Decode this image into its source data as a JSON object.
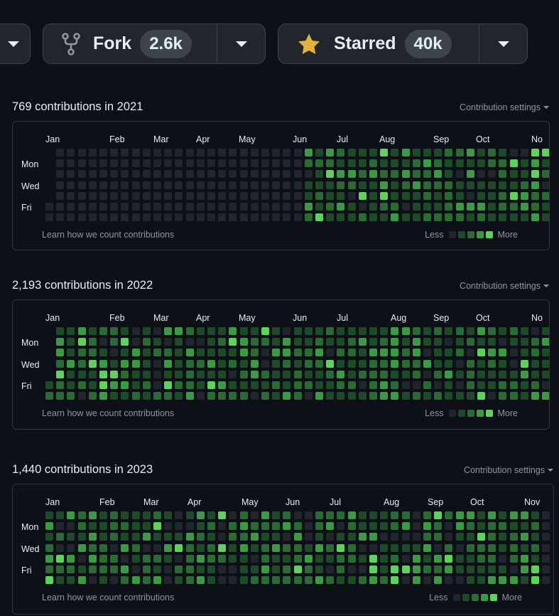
{
  "buttons": {
    "fork": {
      "label": "Fork",
      "count": "2.6k",
      "icon": "fork-icon"
    },
    "star": {
      "label": "Starred",
      "count": "40k",
      "icon": "star-icon"
    }
  },
  "common": {
    "days": [
      "Mon",
      "Wed",
      "Fri"
    ],
    "learn": "Learn how we count contributions",
    "less": "Less",
    "more": "More",
    "settings": "Contribution settings"
  },
  "colors": {
    "level0": "#21262d",
    "level1": "#1f4a29",
    "level2": "#2b6a35",
    "level3": "#3c9a47",
    "level4": "#5fd15f"
  },
  "years": [
    {
      "title": "769 contributions in 2021",
      "months": [
        "Jan",
        "Feb",
        "Mar",
        "Apr",
        "May",
        "Jun",
        "Jul",
        "Aug",
        "Sep",
        "Oct",
        "No"
      ],
      "activity": "from-june"
    },
    {
      "title": "2,193 contributions in 2022",
      "months": [
        "Jan",
        "Feb",
        "Mar",
        "Apr",
        "May",
        "Jun",
        "Jul",
        "Aug",
        "Sep",
        "Oct",
        "No"
      ],
      "activity": "full-year"
    },
    {
      "title": "1,440 contributions in 2023",
      "months": [
        "Jan",
        "Feb",
        "Mar",
        "Apr",
        "May",
        "Jun",
        "Jul",
        "Aug",
        "Sep",
        "Oct",
        "Nov"
      ],
      "activity": "until-november"
    }
  ]
}
